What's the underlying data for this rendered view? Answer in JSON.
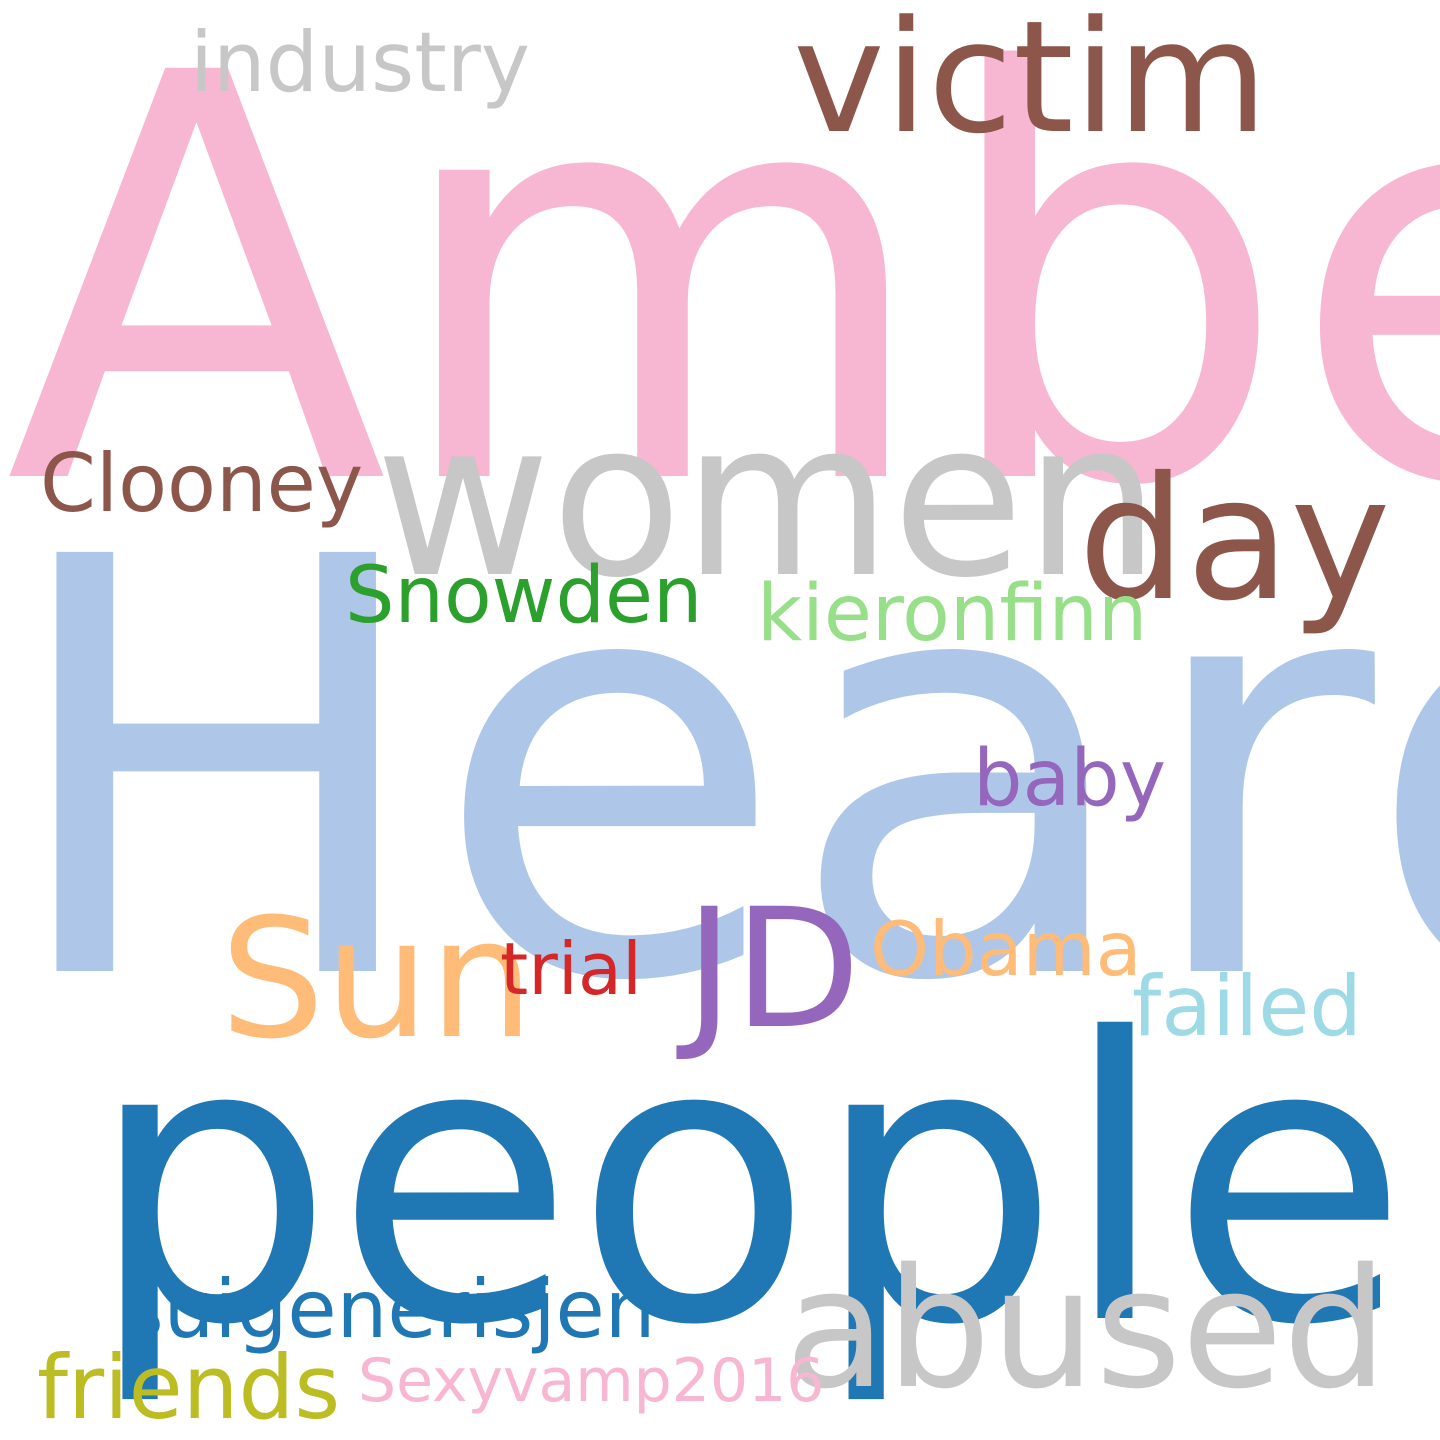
{
  "words": {
    "amber": {
      "text": "Amber",
      "color": "#f7b6d2"
    },
    "victim": {
      "text": "victim",
      "color": "#8c564b"
    },
    "industry": {
      "text": "industry",
      "color": "#c7c7c7"
    },
    "women": {
      "text": "women",
      "color": "#c7c7c7"
    },
    "day": {
      "text": "day",
      "color": "#8c564b"
    },
    "clooney": {
      "text": "Clooney",
      "color": "#8c564b"
    },
    "heard": {
      "text": "Heard",
      "color": "#aec7e8"
    },
    "snowden": {
      "text": "Snowden",
      "color": "#2ca02c"
    },
    "kieronfinn": {
      "text": "kieronfinn",
      "color": "#98df8a"
    },
    "baby": {
      "text": "baby",
      "color": "#9467bd"
    },
    "jd": {
      "text": "JD",
      "color": "#9467bd"
    },
    "obama": {
      "text": "Obama",
      "color": "#ffbb78"
    },
    "sun": {
      "text": "Sun",
      "color": "#ffbb78"
    },
    "trial": {
      "text": "trial",
      "color": "#d62728"
    },
    "failed": {
      "text": "failed",
      "color": "#9edae5"
    },
    "people": {
      "text": "people",
      "color": "#1f77b4"
    },
    "suigenerisjen": {
      "text": "suigenerisjen",
      "color": "#1f77b4"
    },
    "abused": {
      "text": "abused",
      "color": "#c7c7c7"
    },
    "friends": {
      "text": "friends",
      "color": "#bcbd22"
    },
    "sexyvamp": {
      "text": "Sexyvamp2016",
      "color": "#f7b6d2"
    }
  }
}
